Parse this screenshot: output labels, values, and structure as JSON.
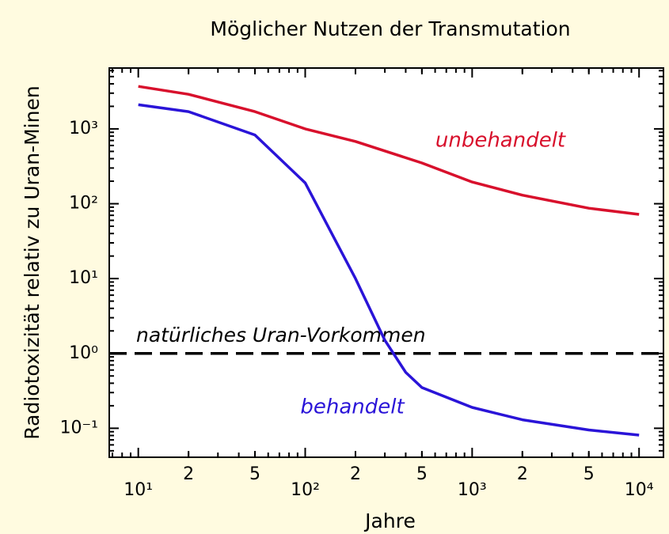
{
  "chart_data": {
    "type": "line",
    "title": "Möglicher Nutzen der Transmutation",
    "xlabel": "Jahre",
    "ylabel": "Radiotoxizität relativ zu Uran-Minen",
    "xscale": "log",
    "yscale": "log",
    "xlim": [
      6.7,
      14000
    ],
    "ylim": [
      0.041,
      6500
    ],
    "xticks": [
      {
        "value": 10,
        "label": "10¹"
      },
      {
        "value": 20,
        "label": "2"
      },
      {
        "value": 50,
        "label": "5"
      },
      {
        "value": 100,
        "label": "10²"
      },
      {
        "value": 200,
        "label": "2"
      },
      {
        "value": 500,
        "label": "5"
      },
      {
        "value": 1000,
        "label": "10³"
      },
      {
        "value": 2000,
        "label": "2"
      },
      {
        "value": 5000,
        "label": "5"
      },
      {
        "value": 10000,
        "label": "10⁴"
      }
    ],
    "yticks": [
      {
        "value": 0.1,
        "label": "10⁻¹"
      },
      {
        "value": 1,
        "label": "10⁰"
      },
      {
        "value": 10,
        "label": "10¹"
      },
      {
        "value": 100,
        "label": "10²"
      },
      {
        "value": 1000,
        "label": "10³"
      }
    ],
    "series": [
      {
        "name": "unbehandelt",
        "color": "#d8102c",
        "x": [
          10,
          20,
          50,
          100,
          200,
          500,
          1000,
          2000,
          5000,
          10000
        ],
        "values": [
          3700,
          2900,
          1700,
          1000,
          680,
          350,
          195,
          130,
          87,
          72
        ]
      },
      {
        "name": "behandelt",
        "color": "#2a14d8",
        "x": [
          10,
          20,
          50,
          100,
          150,
          200,
          300,
          400,
          500,
          1000,
          2000,
          5000,
          10000
        ],
        "values": [
          2100,
          1700,
          830,
          190,
          34,
          10,
          1.5,
          0.56,
          0.35,
          0.19,
          0.13,
          0.095,
          0.081
        ]
      }
    ],
    "reference_line": {
      "value": 1,
      "label": "natürliches Uran-Vorkommen"
    }
  }
}
